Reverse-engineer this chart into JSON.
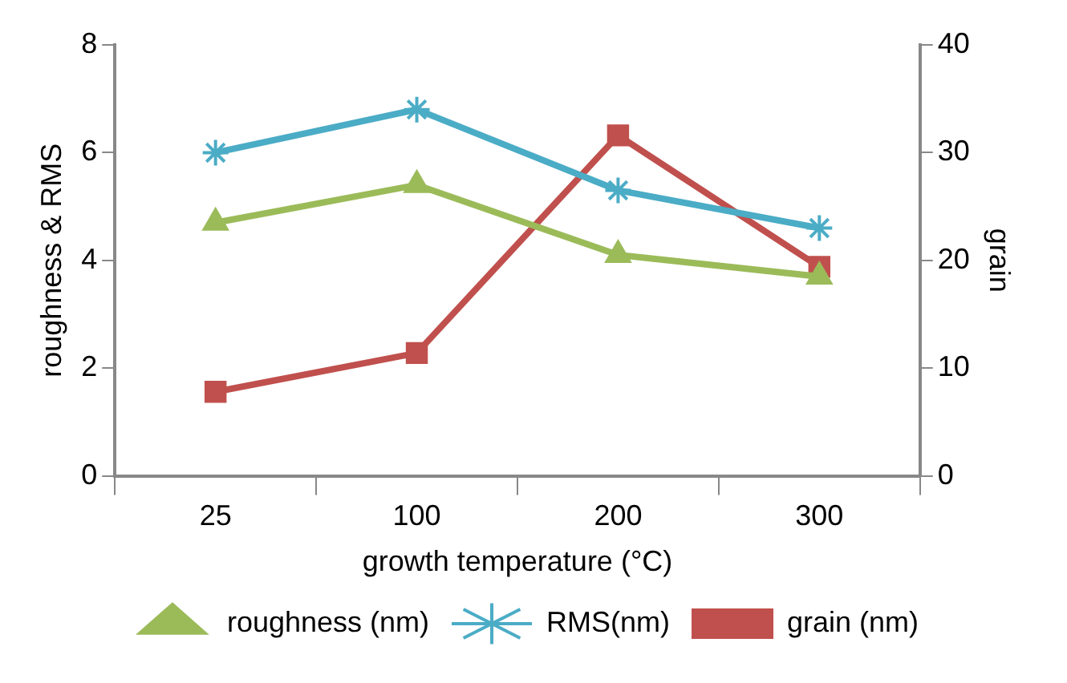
{
  "chart_data": {
    "type": "line",
    "xlabel": "growth temperature (°C)",
    "ylabel": "roughness & RMS",
    "y2label": "grain",
    "categories": [
      "25",
      "100",
      "200",
      "300"
    ],
    "series": [
      {
        "name": "roughness (nm)",
        "color": "#9bbb59",
        "marker": "triangle",
        "values": [
          4.7,
          5.4,
          4.1,
          3.7
        ]
      },
      {
        "name": "RMS(nm)",
        "color": "#4bacc6",
        "marker": "cross",
        "values": [
          6.0,
          6.8,
          5.3,
          4.6
        ]
      },
      {
        "name": "grain (nm)",
        "color": "#c0504d",
        "marker": "square",
        "axis": "y2",
        "values": [
          7.8,
          11.4,
          31.6,
          19.4
        ]
      }
    ],
    "ylim": [
      0,
      8
    ],
    "yticks": [
      0,
      2,
      4,
      6,
      8
    ],
    "y2lim": [
      0,
      40
    ],
    "y2ticks": [
      0,
      10,
      20,
      30,
      40
    ],
    "grid": false,
    "legend": "bottom",
    "line_style": "solid"
  }
}
